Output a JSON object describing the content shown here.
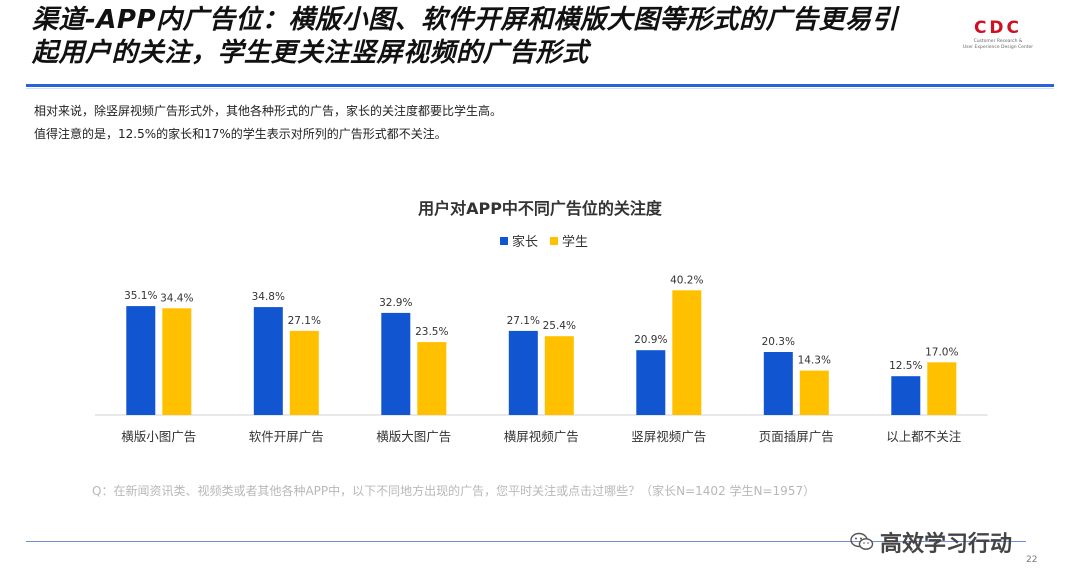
{
  "slide": {
    "title_line1": "渠道-APP内广告位：横版小图、软件开屏和横版大图等形式的广告更易引",
    "title_line2": "起用户的关注，学生更关注竖屏视频的广告形式",
    "logo": "CDC",
    "logo_sub_line1": "Customer Research &",
    "logo_sub_line2": "User Experience Design Center",
    "desc_line1": "相对来说，除竖屏视频广告形式外，其他各种形式的广告，家长的关注度都要比学生高。",
    "desc_line2": "值得注意的是，12.5%的家长和17%的学生表示对所列的广告形式都不关注。",
    "question": "Q：在新闻资讯类、视频类或者其他各种APP中，以下不同地方出现的广告，您平时关注或点击过哪些？（家长N=1402    学生N=1957）",
    "watermark": "高效学习行动",
    "page_number": "22",
    "colors": {
      "accent_rule": "#2a62d8",
      "parent": "#1155d0",
      "student": "#ffc000"
    }
  },
  "chart_data": {
    "type": "bar",
    "title": "用户对APP中不同广告位的关注度",
    "categories": [
      "横版小图广告",
      "软件开屏广告",
      "横版大图广告",
      "横屏视频广告",
      "竖屏视频广告",
      "页面插屏广告",
      "以上都不关注"
    ],
    "series": [
      {
        "name": "家长",
        "color": "#1155d0",
        "values": [
          35.1,
          34.8,
          32.9,
          27.1,
          20.9,
          20.3,
          12.5
        ]
      },
      {
        "name": "学生",
        "color": "#ffc000",
        "values": [
          34.4,
          27.1,
          23.5,
          25.4,
          40.2,
          14.3,
          17.0
        ]
      }
    ],
    "value_format": "%",
    "xlabel": "",
    "ylabel": "",
    "ylim": [
      0,
      45
    ],
    "grid": false,
    "legend": "top-center"
  }
}
